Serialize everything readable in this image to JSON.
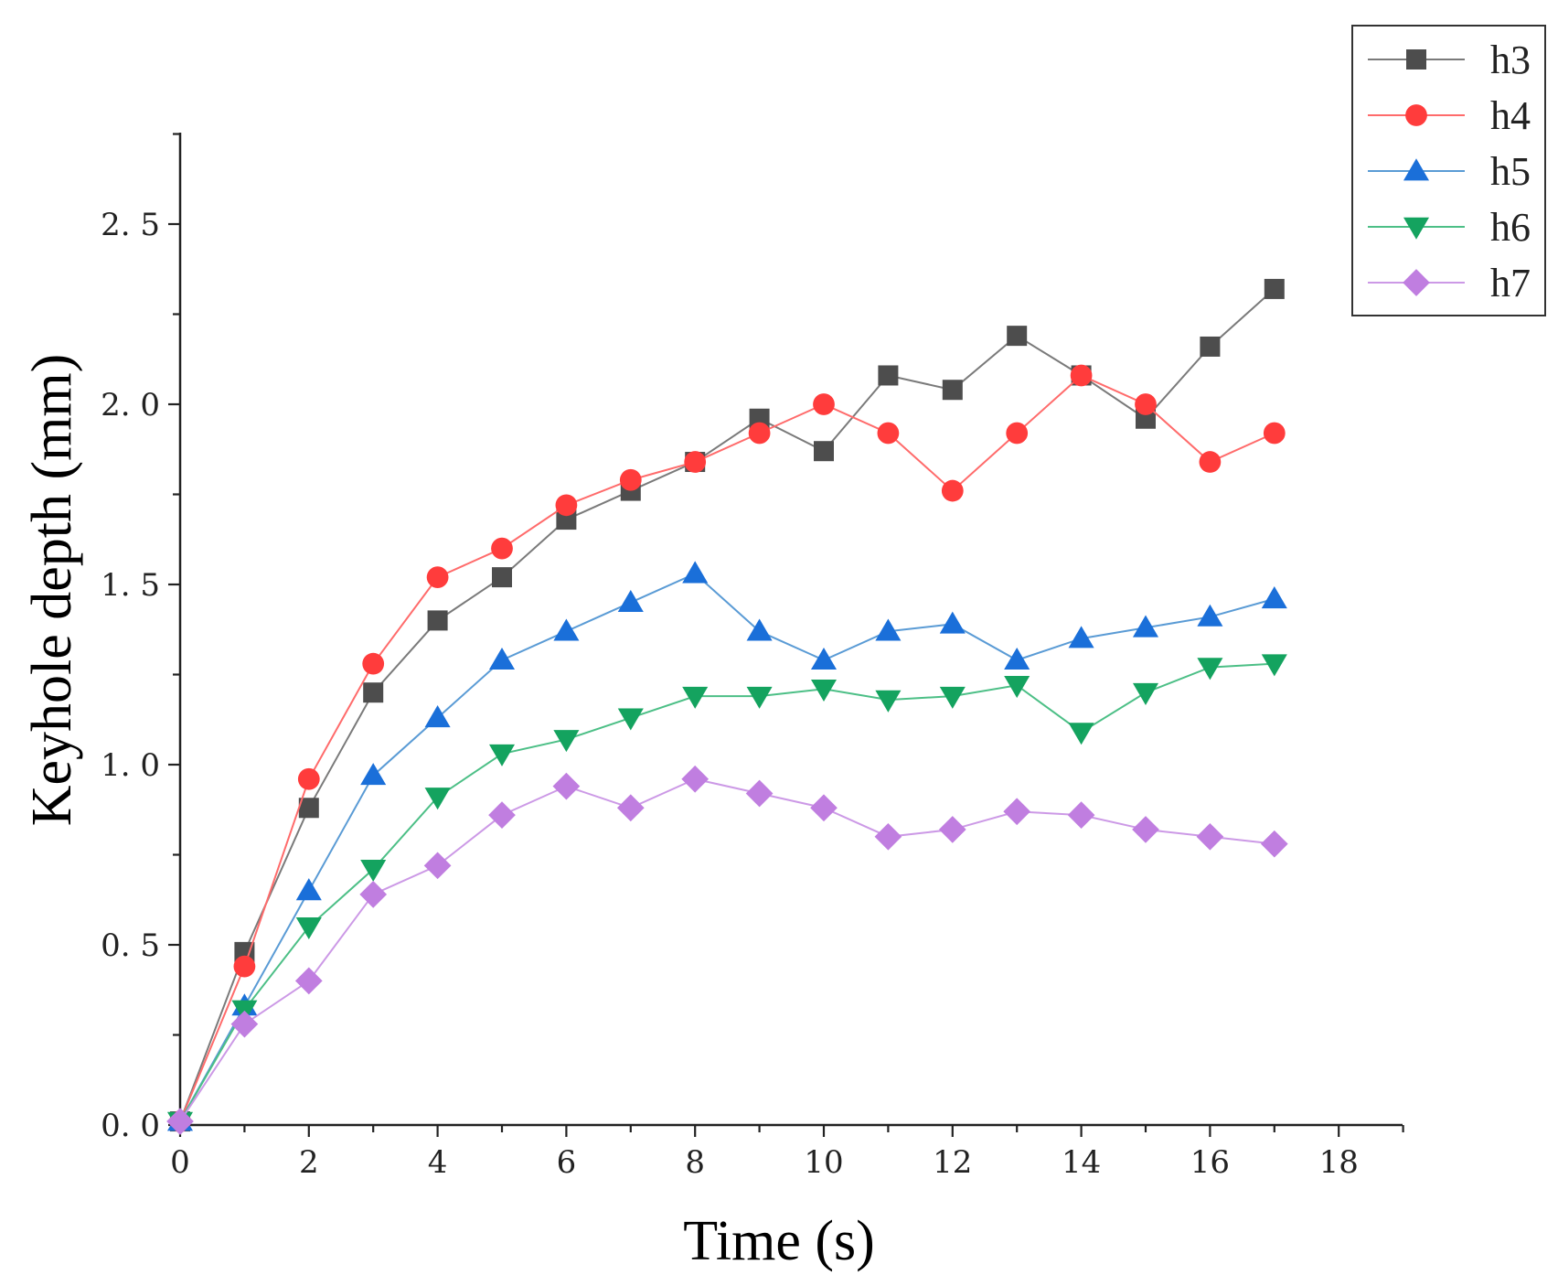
{
  "chart_data": {
    "type": "line",
    "title": "",
    "xlabel": "Time (s)",
    "ylabel": "Keyhole depth (mm)",
    "xlim": [
      0,
      19
    ],
    "ylim": [
      0,
      2.75
    ],
    "xticks": [
      0,
      2,
      4,
      6,
      8,
      10,
      12,
      14,
      16,
      18
    ],
    "xtick_labels": [
      "0",
      "2",
      "4",
      "6",
      "8",
      "10",
      "12",
      "14",
      "16",
      "18"
    ],
    "yticks": [
      0,
      0.5,
      1.0,
      1.5,
      2.0,
      2.5
    ],
    "ytick_labels": [
      "0. 0",
      "0. 5",
      "1. 0",
      "1. 5",
      "2. 0",
      "2. 5"
    ],
    "grid": false,
    "legend_position": "top-right, outside plot",
    "x": [
      0,
      1,
      2,
      3,
      4,
      5,
      6,
      7,
      8,
      9,
      10,
      11,
      12,
      13,
      14,
      15,
      16,
      17
    ],
    "series": [
      {
        "name": "h3",
        "color": "#4d4d4d",
        "line_color": "#7a7a7a",
        "marker": "square",
        "values": [
          0.01,
          0.48,
          0.88,
          1.2,
          1.4,
          1.52,
          1.68,
          1.76,
          1.84,
          1.96,
          1.87,
          2.08,
          2.04,
          2.19,
          2.08,
          1.96,
          2.16,
          2.32
        ]
      },
      {
        "name": "h4",
        "color": "#ff3c3c",
        "line_color": "#ff6b6b",
        "marker": "circle",
        "values": [
          0.01,
          0.44,
          0.96,
          1.28,
          1.52,
          1.6,
          1.72,
          1.79,
          1.84,
          1.92,
          2.0,
          1.92,
          1.76,
          1.92,
          2.08,
          2.0,
          1.84,
          1.92
        ]
      },
      {
        "name": "h5",
        "color": "#1a6fd9",
        "line_color": "#5a9bd5",
        "marker": "triangle-up",
        "values": [
          0.01,
          0.33,
          0.65,
          0.97,
          1.13,
          1.29,
          1.37,
          1.45,
          1.53,
          1.37,
          1.29,
          1.37,
          1.39,
          1.29,
          1.35,
          1.38,
          1.41,
          1.46
        ]
      },
      {
        "name": "h6",
        "color": "#14a35f",
        "line_color": "#4cbf86",
        "marker": "triangle-down",
        "values": [
          0.01,
          0.32,
          0.55,
          0.71,
          0.91,
          1.03,
          1.07,
          1.13,
          1.19,
          1.19,
          1.21,
          1.18,
          1.19,
          1.22,
          1.09,
          1.2,
          1.27,
          1.28
        ]
      },
      {
        "name": "h7",
        "color": "#c07ee0",
        "line_color": "#cc99e6",
        "marker": "diamond",
        "values": [
          0.01,
          0.28,
          0.4,
          0.64,
          0.72,
          0.86,
          0.94,
          0.88,
          0.96,
          0.92,
          0.88,
          0.8,
          0.82,
          0.87,
          0.86,
          0.82,
          0.8,
          0.78
        ]
      }
    ]
  }
}
